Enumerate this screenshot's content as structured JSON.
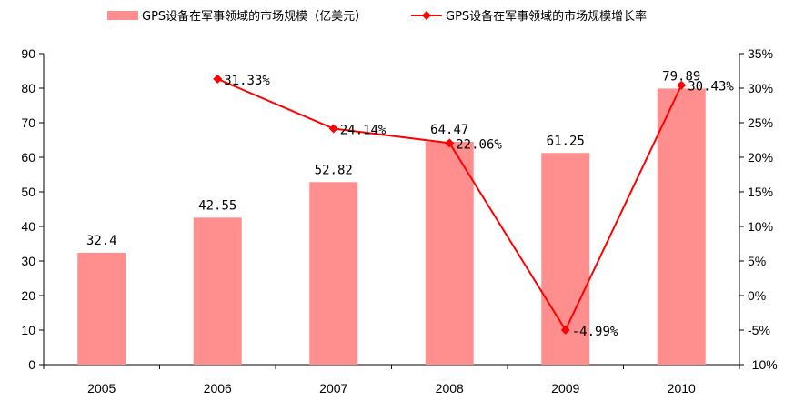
{
  "chart_data": {
    "type": "bar+line",
    "categories": [
      "2005",
      "2006",
      "2007",
      "2008",
      "2009",
      "2010"
    ],
    "series": [
      {
        "name": "GPS设备在军事领域的市场规模（亿美元）",
        "type": "bar",
        "axis": "left",
        "values": [
          32.4,
          42.55,
          52.82,
          64.47,
          61.25,
          79.89
        ],
        "labels": [
          "32.4",
          "42.55",
          "52.82",
          "64.47",
          "61.25",
          "79.89"
        ],
        "color": "#ff8f8f"
      },
      {
        "name": "GPS设备在军事领域的市场规模增长率",
        "type": "line",
        "axis": "right",
        "values": [
          null,
          31.33,
          24.14,
          22.06,
          -4.99,
          30.43
        ],
        "labels": [
          "",
          "31.33%",
          "24.14%",
          "22.06%",
          "-4.99%",
          "30.43%"
        ],
        "color": "#ff0000"
      }
    ],
    "y_left": {
      "min": 0,
      "max": 90,
      "step": 10,
      "ticks": [
        "0",
        "10",
        "20",
        "30",
        "40",
        "50",
        "60",
        "70",
        "80",
        "90"
      ]
    },
    "y_right": {
      "min": -10,
      "max": 35,
      "step": 5,
      "ticks": [
        "-10%",
        "-5%",
        "0%",
        "5%",
        "10%",
        "15%",
        "20%",
        "25%",
        "30%",
        "35%"
      ]
    },
    "grid": false,
    "legend": "top-center"
  }
}
